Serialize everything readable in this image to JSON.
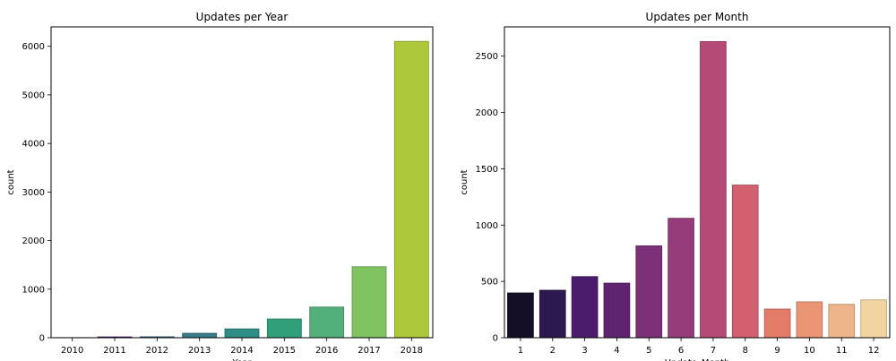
{
  "chart_data": [
    {
      "type": "bar",
      "title": "Updates per Year",
      "xlabel": "Year",
      "ylabel": "count",
      "categories": [
        "2010",
        "2011",
        "2012",
        "2013",
        "2014",
        "2015",
        "2016",
        "2017",
        "2018"
      ],
      "values": [
        1,
        15,
        18,
        90,
        180,
        385,
        630,
        1460,
        6100
      ],
      "ylim": [
        0,
        6400
      ],
      "yticks": [
        0,
        1000,
        2000,
        3000,
        4000,
        5000,
        6000
      ],
      "grid": false,
      "colors": [
        "#440154",
        "#472d7b",
        "#3b528b",
        "#2c728e",
        "#21918c",
        "#28ae80",
        "#5ec962",
        "#addc30",
        "#fde725"
      ],
      "bar_colors_shown": [
        "#471365",
        "#3b0f70",
        "#31688e",
        "#3a7b8a",
        "#2e8d84",
        "#31a07a",
        "#53b07a",
        "#80c462",
        "#adc93a"
      ]
    },
    {
      "type": "bar",
      "title": "Updates per Month",
      "xlabel": "Update_Month",
      "ylabel": "count",
      "categories": [
        "1",
        "2",
        "3",
        "4",
        "5",
        "6",
        "7",
        "8",
        "9",
        "10",
        "11",
        "12"
      ],
      "values": [
        397,
        421,
        542,
        484,
        815,
        1060,
        2629,
        1355,
        254,
        318,
        296,
        336
      ],
      "ylim": [
        0,
        2760
      ],
      "yticks": [
        0,
        500,
        1000,
        1500,
        2000,
        2500
      ],
      "grid": false,
      "bar_colors_shown": [
        "#140e26",
        "#2c1a4e",
        "#4a1c6b",
        "#5f2470",
        "#7b3078",
        "#963c7a",
        "#b64a76",
        "#d3606f",
        "#e47c6a",
        "#ea9674",
        "#efb58a",
        "#f2d4a2"
      ]
    }
  ]
}
